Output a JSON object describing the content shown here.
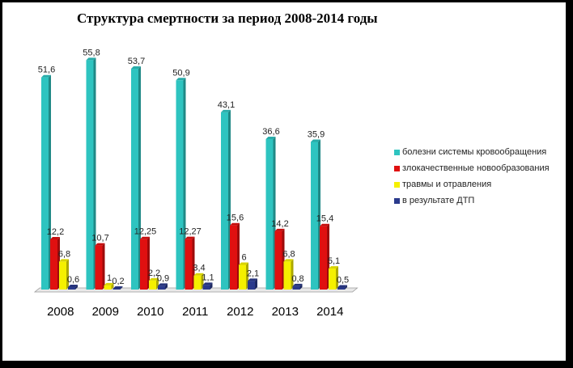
{
  "chart_data": {
    "type": "bar",
    "title": "Структура смертности за период 2008-2014 годы",
    "categories": [
      "2008",
      "2009",
      "2010",
      "2011",
      "2012",
      "2013",
      "2014"
    ],
    "series": [
      {
        "name": "болезни системы кровообращения",
        "color": "#2EC4C0",
        "values": [
          51.6,
          55.8,
          53.7,
          50.9,
          43.1,
          36.6,
          35.9
        ],
        "labels": [
          "51,6",
          "55,8",
          "53,7",
          "50,9",
          "43,1",
          "36,6",
          "35,9"
        ]
      },
      {
        "name": "злокачественные новообразования",
        "color": "#E01010",
        "values": [
          12.2,
          10.7,
          12.25,
          12.27,
          15.6,
          14.2,
          15.4
        ],
        "labels": [
          "12,2",
          "10,7",
          "12,25",
          "12,27",
          "15,6",
          "14,2",
          "15,4"
        ]
      },
      {
        "name": "травмы и отравления",
        "color": "#F5F000",
        "values": [
          6.8,
          1,
          2.2,
          3.4,
          6,
          6.8,
          5.1
        ],
        "labels": [
          "6,8",
          "1",
          "2,2",
          "3,4",
          "6",
          "6,8",
          "5,1"
        ]
      },
      {
        "name": "в результате ДТП",
        "color": "#2A3A8C",
        "values": [
          0.6,
          0.2,
          0.9,
          1.1,
          2.1,
          0.8,
          0.5
        ],
        "labels": [
          "0,6",
          "0,2",
          "0,9",
          "1,1",
          "2,1",
          "0,8",
          "0,5"
        ]
      }
    ],
    "ylim": [
      0,
      60
    ],
    "grid": false,
    "legend_position": "right"
  }
}
